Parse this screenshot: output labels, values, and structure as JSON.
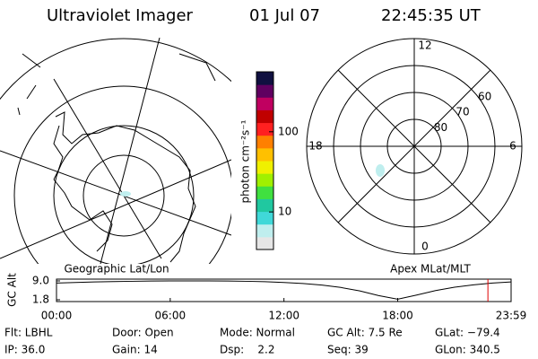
{
  "header": {
    "title": "Ultraviolet Imager",
    "date": "01 Jul 07",
    "time": "22:45:35 UT"
  },
  "map": {
    "label": "Geographic Lat/Lon"
  },
  "chart_data": [
    {
      "type": "polar",
      "title": "Apex MLat/MLT",
      "rlim": [
        90,
        50
      ],
      "rticks": [
        80,
        70,
        60
      ],
      "angle_ticks": [
        12,
        18,
        6,
        0
      ],
      "angle_period": 24
    },
    {
      "type": "colorbar",
      "label": "photon cm⁻²s⁻¹",
      "log": true,
      "ylim": [
        3.4,
        560
      ],
      "yticks": [
        10,
        100
      ],
      "colors": [
        "#e6e6e6",
        "#bfeeee",
        "#40d8d8",
        "#20c8a0",
        "#40e040",
        "#a0f000",
        "#f0f000",
        "#ffc000",
        "#ff8000",
        "#ff2020",
        "#c00000",
        "#c00060",
        "#600060",
        "#101040"
      ]
    },
    {
      "type": "line",
      "ylabel": "GC Alt",
      "x": [
        0,
        1,
        2,
        3,
        4,
        5,
        6,
        7,
        8,
        9,
        10,
        11,
        12,
        13,
        14,
        15,
        16,
        17,
        18,
        19,
        20,
        21,
        22,
        23,
        23.983
      ],
      "values": [
        8.2,
        8.4,
        8.6,
        8.75,
        8.85,
        8.95,
        9.0,
        9.0,
        9.0,
        8.95,
        8.85,
        8.7,
        8.4,
        8.0,
        7.4,
        6.5,
        5.2,
        3.4,
        2.0,
        3.6,
        5.3,
        6.6,
        7.5,
        8.2,
        8.6
      ],
      "color": "#000000",
      "xlim": [
        0,
        23.983
      ],
      "xticks": [
        {
          "value": 0,
          "label": "00:00"
        },
        {
          "value": 6,
          "label": "06:00"
        },
        {
          "value": 12,
          "label": "12:00"
        },
        {
          "value": 18,
          "label": "18:00"
        },
        {
          "value": 23.983,
          "label": "23:59"
        }
      ],
      "ylim": [
        1.8,
        9.0
      ],
      "yticks": [
        {
          "value": 9.0,
          "label": "9.0"
        },
        1.8
      ],
      "marker_x": 22.76,
      "marker_color": "#e00000"
    }
  ],
  "info": {
    "columns": [
      [
        "Flt: LBHL",
        "IP: 36.0"
      ],
      [
        "Door: Open",
        "Gain: 14"
      ],
      [
        "Mode: Normal",
        "Dsp:    2.2"
      ],
      [
        "GC Alt: 7.5 Re",
        "Seq: 39"
      ],
      [
        "GLat: −79.4",
        "GLon: 340.5"
      ]
    ]
  }
}
